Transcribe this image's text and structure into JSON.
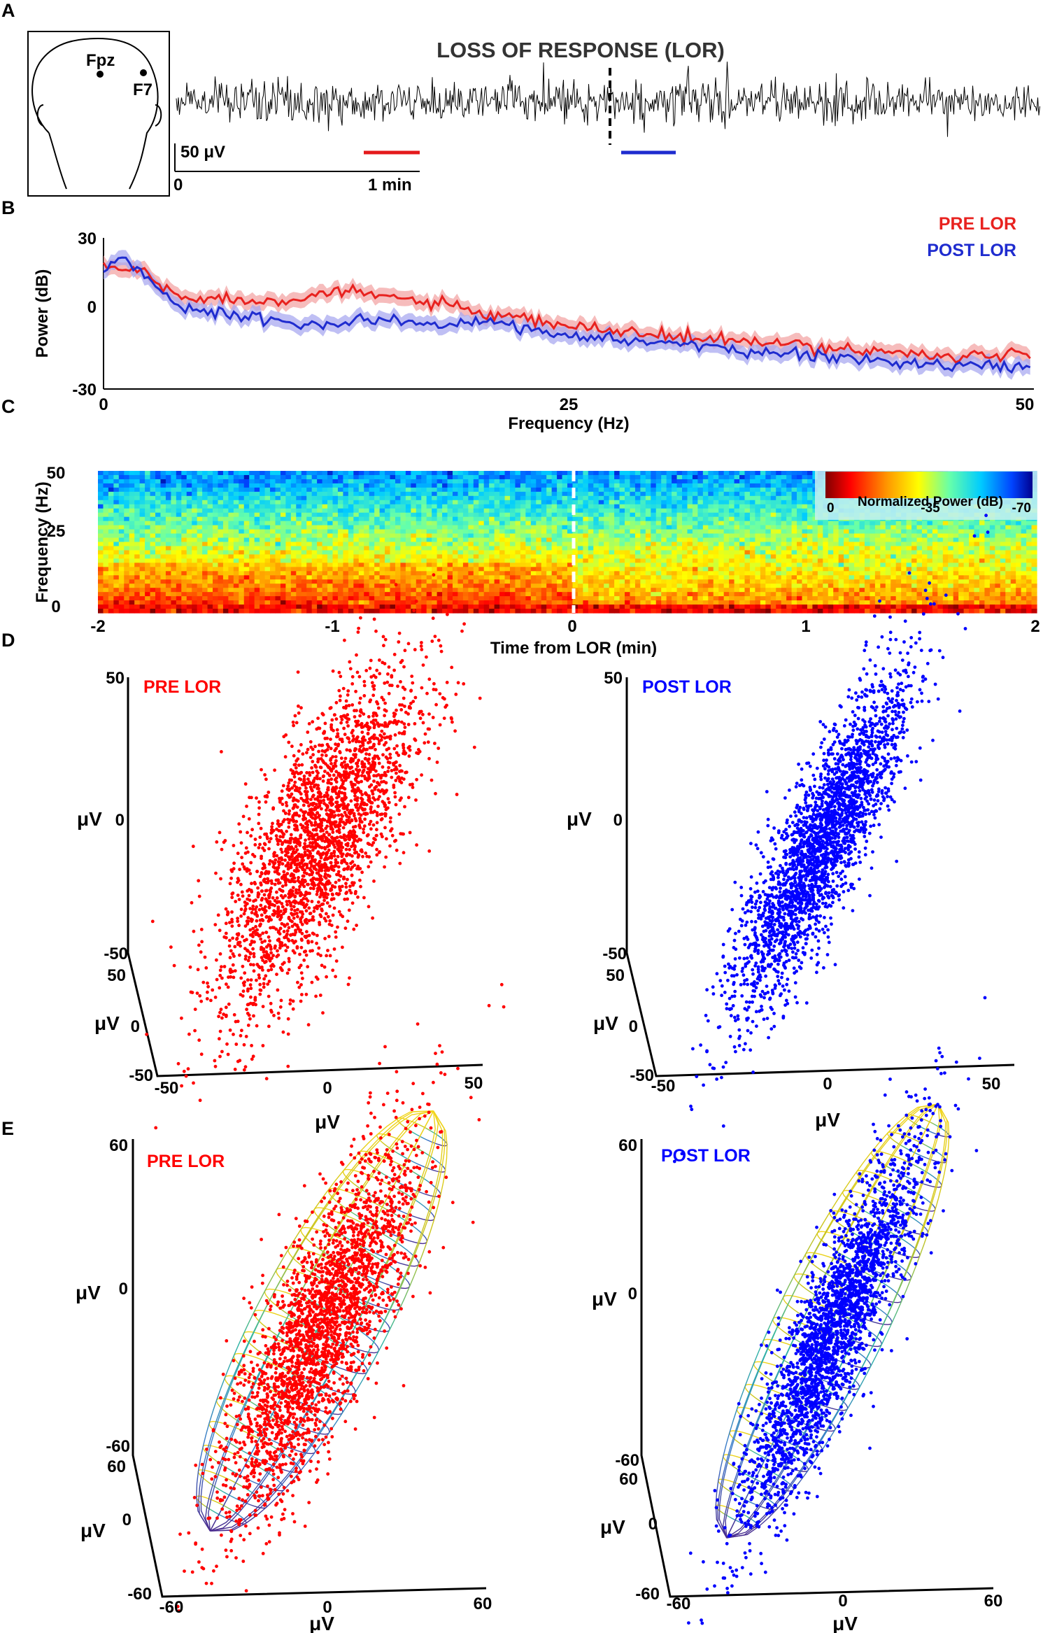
{
  "chart_data": [
    {
      "panel": "A",
      "type": "line",
      "title": "LOSS OF RESPONSE (LOR)",
      "electrodes": [
        "Fpz",
        "F7"
      ],
      "scale_bar_amplitude": "50 μV",
      "scale_bar_time": "1 min",
      "time_origin_label": "0",
      "trace_color": "#000000",
      "pre_window_color": "#e41a1c",
      "post_window_color": "#1f2ccf"
    },
    {
      "panel": "B",
      "type": "line",
      "xlabel": "Frequency (Hz)",
      "ylabel": "Power (dB)",
      "xlim": [
        0,
        50
      ],
      "ylim": [
        -30,
        30
      ],
      "xticks": [
        "0",
        "25",
        "50"
      ],
      "yticks": [
        "30",
        "0",
        "-30"
      ],
      "series": [
        {
          "name": "PRE LOR",
          "color": "#e8221f",
          "x": [
            0,
            1,
            2,
            3,
            4,
            6,
            8,
            10,
            12,
            14,
            16,
            18,
            20,
            22,
            24,
            26,
            28,
            30,
            32,
            34,
            36,
            38,
            40,
            42,
            44,
            46,
            48,
            50
          ],
          "values": [
            19,
            17,
            18,
            11,
            7,
            6,
            5,
            6,
            8,
            8,
            6,
            4,
            0,
            -2,
            -4,
            -6,
            -7,
            -9,
            -10,
            -11,
            -12,
            -13,
            -14,
            -15,
            -16,
            -17,
            -17,
            -16
          ]
        },
        {
          "name": "POST LOR",
          "color": "#1f2ccf",
          "x": [
            0,
            1,
            2,
            3,
            4,
            6,
            8,
            10,
            12,
            14,
            16,
            18,
            20,
            22,
            24,
            26,
            28,
            30,
            32,
            34,
            36,
            38,
            40,
            42,
            44,
            46,
            48,
            50
          ],
          "values": [
            17,
            23,
            17,
            9,
            3,
            0,
            -2,
            -3,
            -5,
            -2,
            -3,
            -5,
            -3,
            -5,
            -7,
            -9,
            -11,
            -11,
            -13,
            -15,
            -16,
            -17,
            -18,
            -19,
            -20,
            -21,
            -21,
            -21
          ]
        }
      ]
    },
    {
      "panel": "C",
      "type": "heatmap",
      "xlabel": "Time from LOR (min)",
      "ylabel": "Frequency (Hz)",
      "xlim": [
        -2,
        2
      ],
      "ylim": [
        0,
        50
      ],
      "xticks": [
        "-2",
        "-1",
        "0",
        "1",
        "2"
      ],
      "yticks": [
        "50",
        "25",
        "0"
      ],
      "colorbar_label": "Normalized Power (dB)",
      "colorbar_ticks": [
        "0",
        "-35",
        "-70"
      ],
      "colorbar_range": [
        0,
        -70
      ]
    },
    {
      "panel": "D",
      "type": "scatter",
      "subplots": [
        {
          "title": "PRE LOR",
          "color": "#ff0000",
          "n_points": 3500,
          "x_range": [
            -50,
            50
          ],
          "y_range": [
            -50,
            50
          ],
          "z_range": [
            -50,
            50
          ],
          "x_label": "μV",
          "y_label": "μV",
          "z_label": "μV",
          "x_ticks": [
            "-50",
            "0",
            "50"
          ],
          "y_ticks": [
            "-50",
            "0",
            "50"
          ],
          "z_ticks": [
            "-50",
            "0",
            "50"
          ]
        },
        {
          "title": "POST LOR",
          "color": "#0000ff",
          "n_points": 3500,
          "x_range": [
            -50,
            50
          ],
          "y_range": [
            -50,
            50
          ],
          "z_range": [
            -50,
            50
          ],
          "x_label": "μV",
          "y_label": "μV",
          "z_label": "μV",
          "x_ticks": [
            "-50",
            "0",
            "50"
          ],
          "y_ticks": [
            "-50",
            "0",
            "50"
          ],
          "z_ticks": [
            "-50",
            "0",
            "50"
          ]
        }
      ]
    },
    {
      "panel": "E",
      "type": "scatter",
      "overlay": "fitted ellipsoid",
      "subplots": [
        {
          "title": "PRE LOR",
          "color": "#ff0000",
          "n_points": 3500,
          "x_range": [
            -60,
            60
          ],
          "y_range": [
            -60,
            60
          ],
          "z_range": [
            -60,
            60
          ],
          "x_label": "μV",
          "y_label": "μV",
          "z_label": "μV",
          "x_ticks": [
            "-60",
            "0",
            "60"
          ],
          "y_ticks": [
            "-60",
            "0",
            "60"
          ],
          "z_ticks": [
            "-60",
            "0",
            "60"
          ]
        },
        {
          "title": "POST LOR",
          "color": "#0000ff",
          "n_points": 3500,
          "x_range": [
            -60,
            60
          ],
          "y_range": [
            -60,
            60
          ],
          "z_range": [
            -60,
            60
          ],
          "x_label": "μV",
          "y_label": "μV",
          "z_label": "μV",
          "x_ticks": [
            "-60",
            "0",
            "60"
          ],
          "y_ticks": [
            "-60",
            "0",
            "60"
          ],
          "z_ticks": [
            "-60",
            "0",
            "60"
          ]
        }
      ]
    }
  ],
  "panel_labels": [
    "A",
    "B",
    "C",
    "D",
    "E"
  ]
}
